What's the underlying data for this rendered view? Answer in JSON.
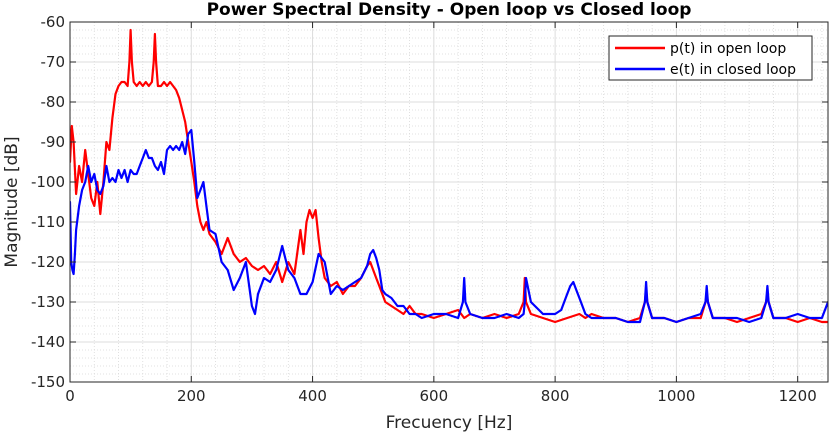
{
  "chart_data": {
    "type": "line",
    "title": "Power Spectral Density - Open loop vs Closed loop",
    "xlabel": "Frecuency [Hz]",
    "ylabel": "Magnitude [dB]",
    "xlim": [
      0,
      1250
    ],
    "ylim": [
      -150,
      -60
    ],
    "xticks": [
      0,
      200,
      400,
      600,
      800,
      1000,
      1200
    ],
    "yticks": [
      -150,
      -140,
      -130,
      -120,
      -110,
      -100,
      -90,
      -80,
      -70,
      -60
    ],
    "grid": true,
    "minor_grid": true,
    "legend_position": "top-right",
    "series": [
      {
        "name": "p(t) in open loop",
        "color": "#ff0000",
        "x": [
          0,
          3,
          6,
          10,
          15,
          20,
          25,
          30,
          35,
          40,
          45,
          50,
          55,
          60,
          65,
          70,
          75,
          80,
          85,
          90,
          95,
          98,
          100,
          102,
          105,
          110,
          115,
          120,
          125,
          130,
          135,
          138,
          140,
          142,
          145,
          150,
          155,
          160,
          165,
          170,
          175,
          180,
          185,
          190,
          195,
          200,
          205,
          210,
          215,
          220,
          225,
          230,
          240,
          250,
          260,
          270,
          280,
          290,
          300,
          310,
          320,
          330,
          340,
          350,
          360,
          370,
          380,
          385,
          390,
          395,
          400,
          405,
          410,
          415,
          420,
          430,
          440,
          450,
          460,
          470,
          480,
          490,
          495,
          500,
          505,
          510,
          520,
          530,
          540,
          550,
          560,
          570,
          580,
          600,
          620,
          640,
          650,
          660,
          680,
          700,
          720,
          740,
          748,
          750,
          752,
          760,
          780,
          800,
          820,
          840,
          850,
          860,
          880,
          900,
          920,
          940,
          948,
          950,
          952,
          960,
          980,
          1000,
          1020,
          1040,
          1048,
          1050,
          1052,
          1060,
          1080,
          1100,
          1120,
          1140,
          1148,
          1150,
          1152,
          1160,
          1180,
          1200,
          1220,
          1240,
          1250
        ],
        "y": [
          -95,
          -86,
          -90,
          -103,
          -96,
          -100,
          -92,
          -98,
          -104,
          -106,
          -100,
          -108,
          -100,
          -90,
          -92,
          -84,
          -78,
          -76,
          -75,
          -75,
          -76,
          -70,
          -62,
          -70,
          -75,
          -76,
          -75,
          -76,
          -75,
          -76,
          -75,
          -70,
          -63,
          -70,
          -76,
          -76,
          -75,
          -76,
          -75,
          -76,
          -77,
          -79,
          -82,
          -85,
          -90,
          -95,
          -100,
          -106,
          -110,
          -112,
          -110,
          -113,
          -115,
          -118,
          -114,
          -118,
          -120,
          -119,
          -121,
          -122,
          -121,
          -123,
          -120,
          -125,
          -120,
          -123,
          -112,
          -118,
          -110,
          -107,
          -109,
          -107,
          -114,
          -120,
          -124,
          -126,
          -125,
          -128,
          -126,
          -126,
          -124,
          -121,
          -120,
          -122,
          -124,
          -126,
          -130,
          -131,
          -132,
          -133,
          -131,
          -133,
          -133,
          -134,
          -133,
          -132,
          -134,
          -133,
          -134,
          -133,
          -134,
          -133,
          -130,
          -124,
          -130,
          -133,
          -134,
          -135,
          -134,
          -133,
          -134,
          -133,
          -134,
          -134,
          -135,
          -134,
          -130,
          -127,
          -130,
          -134,
          -134,
          -135,
          -134,
          -134,
          -130,
          -128,
          -130,
          -134,
          -134,
          -135,
          -134,
          -133,
          -130,
          -128,
          -130,
          -134,
          -134,
          -135,
          -134,
          -135,
          -135
        ]
      },
      {
        "name": "e(t) in closed loop",
        "color": "#0000ff",
        "x": [
          0,
          2,
          4,
          6,
          8,
          10,
          15,
          20,
          25,
          30,
          35,
          40,
          45,
          50,
          55,
          60,
          65,
          70,
          75,
          80,
          85,
          90,
          95,
          100,
          105,
          110,
          115,
          120,
          125,
          130,
          135,
          140,
          145,
          150,
          155,
          160,
          165,
          170,
          175,
          180,
          185,
          190,
          195,
          200,
          205,
          210,
          215,
          220,
          225,
          230,
          240,
          250,
          260,
          270,
          280,
          290,
          300,
          305,
          310,
          315,
          320,
          330,
          340,
          350,
          360,
          370,
          380,
          390,
          400,
          410,
          420,
          430,
          440,
          450,
          460,
          470,
          480,
          490,
          495,
          500,
          505,
          510,
          515,
          520,
          530,
          540,
          550,
          560,
          570,
          580,
          600,
          620,
          640,
          648,
          650,
          652,
          660,
          680,
          700,
          720,
          740,
          748,
          750,
          752,
          760,
          780,
          800,
          810,
          820,
          825,
          830,
          835,
          840,
          850,
          860,
          880,
          900,
          920,
          940,
          948,
          950,
          952,
          960,
          980,
          1000,
          1020,
          1040,
          1048,
          1050,
          1052,
          1060,
          1080,
          1100,
          1120,
          1140,
          1148,
          1150,
          1152,
          1160,
          1180,
          1200,
          1220,
          1240,
          1250
        ],
        "y": [
          -105,
          -120,
          -122,
          -123,
          -118,
          -112,
          -106,
          -102,
          -100,
          -96,
          -100,
          -98,
          -102,
          -103,
          -101,
          -96,
          -100,
          -99,
          -100,
          -97,
          -99,
          -97,
          -100,
          -97,
          -98,
          -98,
          -96,
          -94,
          -92,
          -94,
          -94,
          -96,
          -97,
          -95,
          -98,
          -92,
          -91,
          -92,
          -91,
          -92,
          -90,
          -93,
          -88,
          -87,
          -95,
          -104,
          -102,
          -100,
          -106,
          -112,
          -113,
          -120,
          -122,
          -127,
          -124,
          -120,
          -131,
          -133,
          -128,
          -126,
          -124,
          -125,
          -122,
          -116,
          -122,
          -124,
          -128,
          -128,
          -125,
          -118,
          -120,
          -128,
          -126,
          -127,
          -126,
          -125,
          -124,
          -121,
          -118,
          -117,
          -119,
          -122,
          -127,
          -128,
          -129,
          -131,
          -131,
          -133,
          -133,
          -134,
          -133,
          -133,
          -134,
          -130,
          -124,
          -130,
          -133,
          -134,
          -134,
          -133,
          -134,
          -133,
          -130,
          -124,
          -130,
          -133,
          -133,
          -132,
          -128,
          -126,
          -125,
          -127,
          -129,
          -133,
          -134,
          -134,
          -134,
          -135,
          -135,
          -130,
          -125,
          -130,
          -134,
          -134,
          -135,
          -134,
          -133,
          -130,
          -126,
          -130,
          -134,
          -134,
          -134,
          -135,
          -134,
          -130,
          -126,
          -130,
          -134,
          -134,
          -133,
          -134,
          -134,
          -130
        ]
      }
    ]
  }
}
